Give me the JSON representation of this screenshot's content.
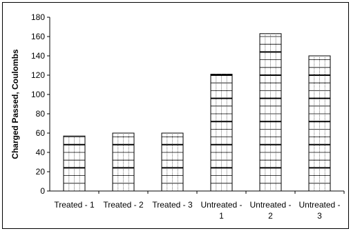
{
  "chart_data": {
    "type": "bar",
    "title": "",
    "xlabel": "",
    "ylabel": "Charged Passed, Coulombs",
    "categories": [
      [
        "Treated - 1"
      ],
      [
        "Treated - 2"
      ],
      [
        "Treated - 3"
      ],
      [
        "Untreated -",
        "1"
      ],
      [
        "Untreated -",
        "2"
      ],
      [
        "Untreated -",
        "3"
      ]
    ],
    "values": [
      57,
      60,
      60,
      121,
      163,
      140
    ],
    "ylim": [
      0,
      180
    ],
    "yticks": [
      "0",
      "20",
      "40",
      "60",
      "80",
      "100",
      "120",
      "140",
      "160",
      "180"
    ],
    "grid": false,
    "legend": "none",
    "colors": {
      "bar_fill": "#ffffff",
      "bar_stroke": "#000000",
      "bar_hatch": "#000000"
    }
  }
}
